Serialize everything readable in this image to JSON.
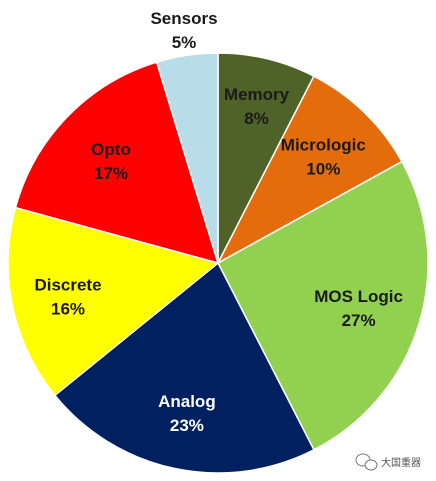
{
  "chart_data": {
    "type": "pie",
    "slices": [
      {
        "label": "Memory",
        "value": 8,
        "value_label": "8%",
        "color": "#4f6228",
        "text_color": "#1a1a1a"
      },
      {
        "label": "Micrologic",
        "value": 10,
        "value_label": "10%",
        "color": "#e46c0a",
        "text_color": "#1a1a1a"
      },
      {
        "label": "MOS Logic",
        "value": 27,
        "value_label": "27%",
        "color": "#92d050",
        "text_color": "#1a1a1a"
      },
      {
        "label": "Analog",
        "value": 23,
        "value_label": "23%",
        "color": "#002060",
        "text_color": "#ffffff"
      },
      {
        "label": "Discrete",
        "value": 16,
        "value_label": "16%",
        "color": "#ffff00",
        "text_color": "#1a1a1a"
      },
      {
        "label": "Opto",
        "value": 17,
        "value_label": "17%",
        "color": "#ff0000",
        "text_color": "#1a1a1a"
      },
      {
        "label": "Sensors",
        "value": 5,
        "value_label": "5%",
        "color": "#b7dde8",
        "text_color": "#1a1a1a"
      }
    ],
    "start_angle": "12 o'clock",
    "direction": "clockwise",
    "legend": "none"
  },
  "watermark": {
    "text": "大国重器",
    "icon": "wechat-icon"
  }
}
